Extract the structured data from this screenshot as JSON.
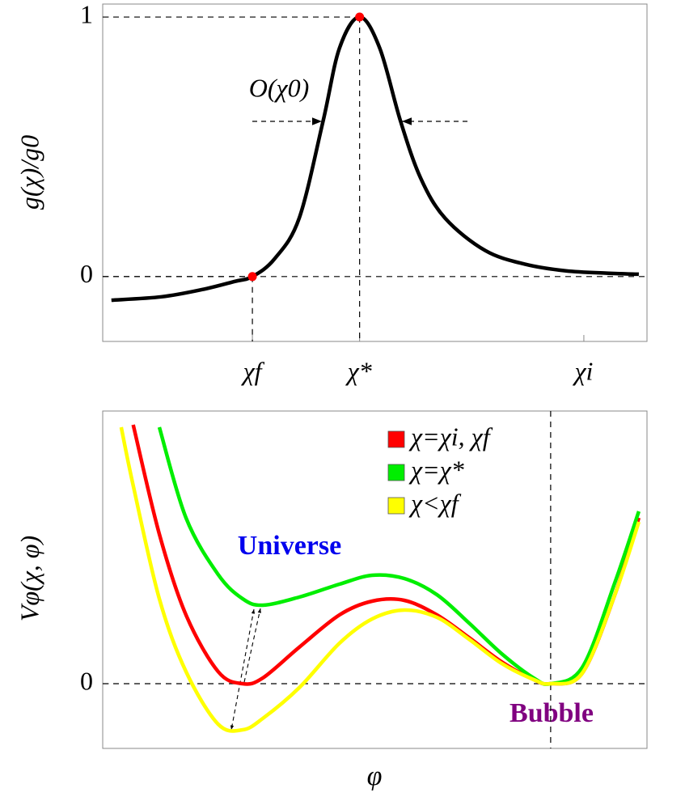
{
  "chart_data": [
    {
      "type": "line",
      "ylabel": "g(χ)/g0",
      "annotation": "O(χ0)",
      "xlim": [
        0,
        10
      ],
      "ylim": [
        -0.25,
        1.05
      ],
      "xticks": [
        {
          "value": 2.75,
          "label": "χf"
        },
        {
          "value": 4.72,
          "label": "χ*"
        },
        {
          "value": 8.84,
          "label": "χi"
        }
      ],
      "yticks": [
        0,
        1
      ],
      "x": [
        0.16,
        1.08,
        1.83,
        2.42,
        2.75,
        3.16,
        3.61,
        4.05,
        4.35,
        4.72,
        5.09,
        5.47,
        5.84,
        6.29,
        7.03,
        7.77,
        8.51,
        9.26,
        9.85
      ],
      "series": [
        {
          "color": "#000000",
          "values": [
            -0.091,
            -0.078,
            -0.05,
            -0.019,
            0,
            0.069,
            0.225,
            0.6,
            0.88,
            1,
            0.88,
            0.6,
            0.38,
            0.225,
            0.1,
            0.047,
            0.022,
            0.013,
            0.009
          ]
        }
      ],
      "points": {
        "x": [
          2.75,
          4.72
        ],
        "values": [
          0,
          1
        ],
        "color": "#ff0000"
      },
      "zero_line": true
    },
    {
      "type": "line",
      "xlabel": "φ",
      "ylabel": "Vφ(χ, φ)",
      "annotations": [
        {
          "text": "Universe",
          "color": "#0000ee"
        },
        {
          "text": "Bubble",
          "color": "#800080"
        }
      ],
      "xlim": [
        0,
        10
      ],
      "ylim": [
        -0.8,
        3.37
      ],
      "yticks": [
        0
      ],
      "x": [
        0.34,
        0.56,
        1.04,
        1.53,
        2.12,
        2.57,
        2.94,
        3.61,
        4.35,
        4.95,
        5.54,
        6.14,
        6.73,
        7.33,
        7.92,
        8.23,
        8.81,
        9.41,
        9.85
      ],
      "series": [
        {
          "name": "χ=χi, χf",
          "color": "#ff0000",
          "values": [
            null,
            3.2,
            1.85,
            0.85,
            0.15,
            0,
            0.07,
            0.45,
            0.85,
            1.02,
            1.03,
            0.85,
            0.57,
            0.27,
            0.05,
            0,
            0.13,
            1.1,
            2.05
          ]
        },
        {
          "name": "χ=χ*",
          "color": "#00ee00",
          "values": [
            null,
            null,
            3.17,
            2.05,
            1.35,
            1.05,
            0.97,
            1.07,
            1.23,
            1.34,
            1.3,
            1.1,
            0.75,
            0.37,
            0.07,
            0,
            0.2,
            1.25,
            2.13
          ]
        },
        {
          "name": "χ<χf",
          "color": "#ffff00",
          "values": [
            3.17,
            2.45,
            1.05,
            0.15,
            -0.5,
            -0.57,
            -0.43,
            -0.05,
            0.5,
            0.8,
            0.91,
            0.82,
            0.55,
            0.25,
            0.05,
            0,
            0.13,
            1.1,
            2.0
          ]
        }
      ],
      "vline": 8.23,
      "zero_line": true,
      "legend": "upper right"
    }
  ]
}
